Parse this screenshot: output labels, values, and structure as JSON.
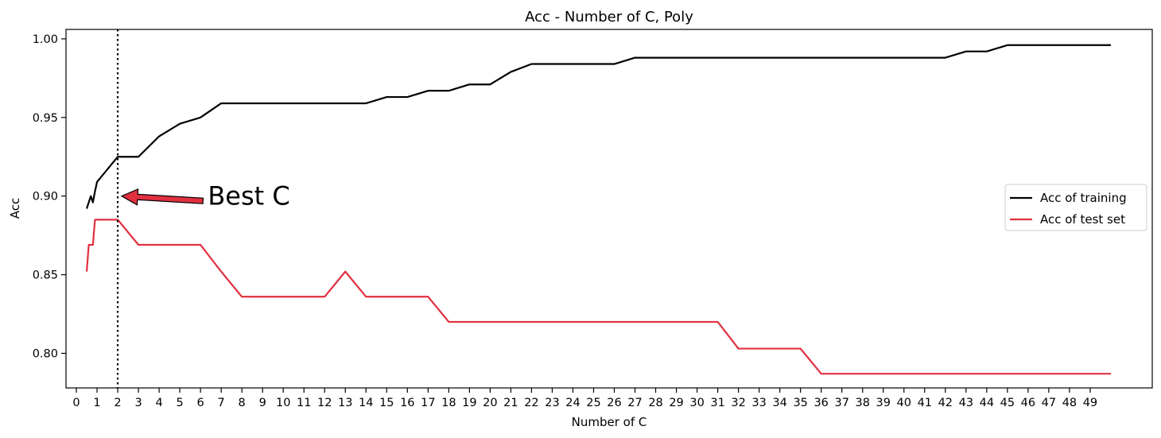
{
  "chart_data": {
    "type": "line",
    "title": "Acc - Number of C, Poly",
    "xlabel": "Number of C",
    "ylabel": "Acc",
    "xlim": [
      -0.5,
      52.0
    ],
    "ylim": [
      0.778,
      1.006
    ],
    "xticks": [
      0,
      1,
      2,
      3,
      4,
      5,
      6,
      7,
      8,
      9,
      10,
      11,
      12,
      13,
      14,
      15,
      16,
      17,
      18,
      19,
      20,
      21,
      22,
      23,
      24,
      25,
      26,
      27,
      28,
      29,
      30,
      31,
      32,
      33,
      34,
      35,
      36,
      37,
      38,
      39,
      40,
      41,
      42,
      43,
      44,
      45,
      46,
      47,
      48,
      49
    ],
    "yticks": [
      0.8,
      0.85,
      0.9,
      0.95,
      1.0
    ],
    "ytick_labels": [
      "0.80",
      "0.85",
      "0.90",
      "0.95",
      "1.00"
    ],
    "grid": false,
    "legend_position": "center-right",
    "series": [
      {
        "name": "Acc of training",
        "color": "#000000",
        "x": [
          0.5,
          0.6,
          0.7,
          0.8,
          0.9,
          1,
          2,
          3,
          4,
          5,
          6,
          7,
          8,
          9,
          10,
          11,
          12,
          13,
          14,
          15,
          16,
          17,
          18,
          19,
          20,
          21,
          22,
          23,
          24,
          25,
          26,
          27,
          28,
          29,
          30,
          31,
          32,
          33,
          34,
          35,
          36,
          37,
          38,
          39,
          40,
          41,
          42,
          43,
          44,
          45,
          46,
          47,
          48,
          49,
          50
        ],
        "y": [
          0.892,
          0.896,
          0.9,
          0.896,
          0.903,
          0.909,
          0.925,
          0.925,
          0.938,
          0.946,
          0.95,
          0.959,
          0.959,
          0.959,
          0.959,
          0.959,
          0.959,
          0.959,
          0.959,
          0.963,
          0.963,
          0.967,
          0.967,
          0.971,
          0.971,
          0.979,
          0.984,
          0.984,
          0.984,
          0.984,
          0.984,
          0.988,
          0.988,
          0.988,
          0.988,
          0.988,
          0.988,
          0.988,
          0.988,
          0.988,
          0.988,
          0.988,
          0.988,
          0.988,
          0.988,
          0.988,
          0.988,
          0.992,
          0.992,
          0.996,
          0.996,
          0.996,
          0.996,
          0.996,
          0.996
        ]
      },
      {
        "name": "Acc of test set",
        "color": "#e03040",
        "x": [
          0.5,
          0.6,
          0.7,
          0.8,
          0.9,
          1,
          2,
          3,
          4,
          5,
          6,
          7,
          8,
          9,
          10,
          11,
          12,
          13,
          14,
          15,
          16,
          17,
          18,
          19,
          20,
          21,
          22,
          23,
          24,
          25,
          26,
          27,
          28,
          29,
          30,
          31,
          32,
          33,
          34,
          35,
          36,
          37,
          38,
          39,
          40,
          41,
          42,
          43,
          44,
          45,
          46,
          47,
          48,
          49,
          50
        ],
        "y": [
          0.852,
          0.869,
          0.869,
          0.869,
          0.885,
          0.885,
          0.885,
          0.869,
          0.869,
          0.869,
          0.869,
          0.852,
          0.836,
          0.836,
          0.836,
          0.836,
          0.836,
          0.852,
          0.836,
          0.836,
          0.836,
          0.836,
          0.82,
          0.82,
          0.82,
          0.82,
          0.82,
          0.82,
          0.82,
          0.82,
          0.82,
          0.82,
          0.82,
          0.82,
          0.82,
          0.82,
          0.803,
          0.803,
          0.803,
          0.803,
          0.787,
          0.787,
          0.787,
          0.787,
          0.787,
          0.787,
          0.787,
          0.787,
          0.787,
          0.787,
          0.787,
          0.787,
          0.787,
          0.787,
          0.787
        ]
      }
    ],
    "vline": {
      "x": 2,
      "style": "dotted",
      "color": "#000000"
    },
    "annotation": {
      "text": "Best C",
      "point_x": 2,
      "point_y": 0.9,
      "text_x": 6.2,
      "text_y": 0.9,
      "arrow_color": "#e03040"
    }
  }
}
